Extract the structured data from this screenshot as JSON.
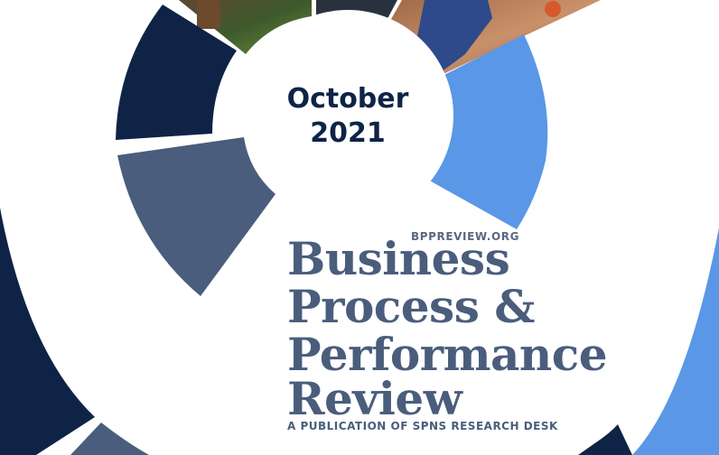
{
  "cover": {
    "month": "October",
    "year": "2021",
    "website": "BPPREVIEW.ORG",
    "title_lines": [
      "Business",
      "Process &",
      "Performance",
      "Review"
    ],
    "publisher": "A PUBLICATION OF SPNS RESEARCH DESK"
  },
  "colors": {
    "navy": "#0f2347",
    "slate": "#4a5d7c",
    "light_blue": "#5a97e6",
    "text_dark": "#0f2347",
    "background": "#ffffff"
  }
}
